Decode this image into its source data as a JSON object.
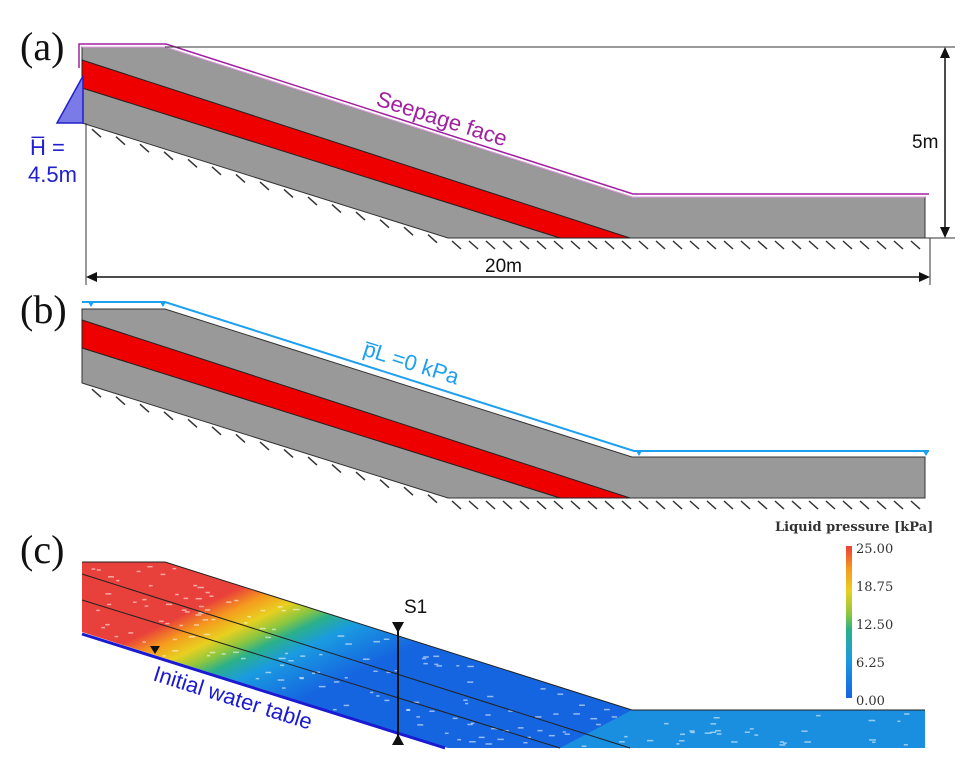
{
  "panels": {
    "a": {
      "label": "(a)",
      "seepage": "Seepage face",
      "head_line1": "H̅ =",
      "head_line2": "4.5m",
      "height": "5m",
      "width": "20m"
    },
    "b": {
      "label": "(b)",
      "pressure": "p̅L =0 kPa"
    },
    "c": {
      "label": "(c)",
      "section": "S1",
      "water_table": "Initial water table"
    }
  },
  "colorbar": {
    "title": "Liquid pressure [kPa]",
    "ticks": [
      "25.00",
      "18.75",
      "12.50",
      "6.25",
      "0.00"
    ],
    "range": [
      0,
      25
    ]
  },
  "colors": {
    "soil": "#999999",
    "layer": "#ee0000",
    "seepage": "#a020a0",
    "boundary": "#1ea0f0",
    "head": "#2020cc"
  }
}
